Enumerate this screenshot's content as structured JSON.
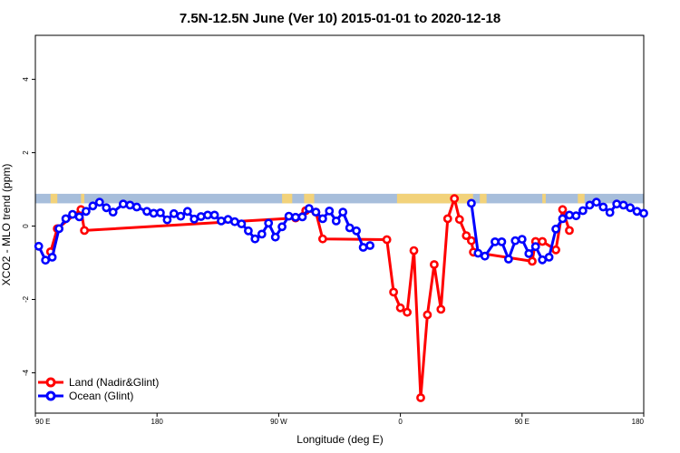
{
  "chart_data": {
    "type": "line",
    "title": "7.5N-12.5N June (Ver 10)   2015-01-01 to 2020-12-18",
    "xlabel": "Longitude (deg E)",
    "ylabel": "XCO2 - MLO trend (ppm)",
    "xlim": [
      90,
      270
    ],
    "ylim": [
      -5.1,
      5.2
    ],
    "x_ticks": [
      {
        "value": 90,
        "label": "90 E"
      },
      {
        "value": 126,
        "label": "180"
      },
      {
        "value": 162,
        "label": "90 W"
      },
      {
        "value": 198,
        "label": "0"
      },
      {
        "value": 234,
        "label": "90 E"
      },
      {
        "value": 270,
        "label": "180"
      }
    ],
    "y_ticks": [
      {
        "value": -4,
        "label": "-4"
      },
      {
        "value": -2,
        "label": "-2"
      },
      {
        "value": 0,
        "label": "0"
      },
      {
        "value": 2,
        "label": "2"
      },
      {
        "value": 4,
        "label": "4"
      }
    ],
    "land_band": {
      "y_bottom": 0.62,
      "y_top": 0.88,
      "ocean_color": "#a7bedb",
      "land_color": "#f2d27a",
      "land_x_ranges": [
        [
          94.5,
          96.5
        ],
        [
          103.5,
          104.5
        ],
        [
          163,
          166
        ],
        [
          169.5,
          172.5
        ],
        [
          197,
          219.5
        ],
        [
          221.5,
          223.5
        ],
        [
          240,
          241
        ],
        [
          250.5,
          252.5
        ]
      ]
    },
    "series": [
      {
        "name": "Land (Nadir&Glint)",
        "color": "#ff0000",
        "x": [
          94.5,
          96.5,
          103.5,
          104.5,
          167,
          170,
          173,
          175,
          194,
          196,
          198,
          200,
          202,
          204,
          206,
          208,
          210,
          212,
          214,
          215.5,
          217.5,
          219,
          219.6,
          237,
          238,
          240,
          244,
          246,
          248
        ],
        "values": [
          -0.7,
          -0.07,
          0.45,
          -0.12,
          0.22,
          0.42,
          0.38,
          -0.35,
          -0.37,
          -1.8,
          -2.23,
          -2.35,
          -0.67,
          -4.68,
          -2.42,
          -1.05,
          -2.27,
          0.2,
          0.75,
          0.18,
          -0.26,
          -0.4,
          -0.71,
          -0.96,
          -0.42,
          -0.42,
          -0.65,
          0.45,
          -0.12
        ]
      },
      {
        "name": "Ocean (Glint)",
        "color": "#0000ff",
        "x": [
          91,
          93,
          95,
          97,
          99,
          101,
          103,
          105,
          107,
          109,
          111,
          113,
          116,
          118,
          120,
          123,
          125,
          127,
          129,
          131,
          133,
          135,
          137,
          139,
          141,
          143,
          145,
          147,
          149,
          151,
          153,
          155,
          157,
          159,
          161,
          163,
          165,
          167,
          169,
          171,
          173,
          175,
          177,
          179,
          181,
          183,
          185,
          187,
          189,
          191,
          193,
          219,
          221,
          223,
          226,
          228,
          230,
          232,
          234,
          236,
          238,
          240,
          242,
          244,
          246,
          248,
          250,
          252,
          254,
          256,
          258,
          260,
          262,
          264,
          266,
          268,
          270
        ],
        "values": [
          -0.55,
          -0.93,
          -0.85,
          -0.07,
          0.2,
          0.32,
          0.25,
          0.4,
          0.55,
          0.65,
          0.5,
          0.38,
          0.6,
          0.57,
          0.52,
          0.4,
          0.35,
          0.36,
          0.17,
          0.34,
          0.27,
          0.4,
          0.19,
          0.26,
          0.3,
          0.3,
          0.14,
          0.18,
          0.12,
          0.06,
          -0.13,
          -0.35,
          -0.22,
          0.08,
          -0.3,
          -0.02,
          0.27,
          0.24,
          0.25,
          0.48,
          0.38,
          0.2,
          0.41,
          0.14,
          0.38,
          -0.05,
          -0.13,
          -0.58,
          -0.53,
          null,
          null,
          0.62,
          -0.74,
          -0.82,
          -0.43,
          -0.43,
          -0.9,
          -0.4,
          -0.36,
          -0.75,
          -0.56,
          -0.92,
          -0.85,
          -0.08,
          0.2,
          0.3,
          0.28,
          0.42,
          0.57,
          0.65,
          0.52,
          0.37,
          0.6,
          0.57,
          0.5,
          0.4,
          0.35
        ]
      }
    ],
    "legend_position": "bottom-left",
    "grid": false
  }
}
